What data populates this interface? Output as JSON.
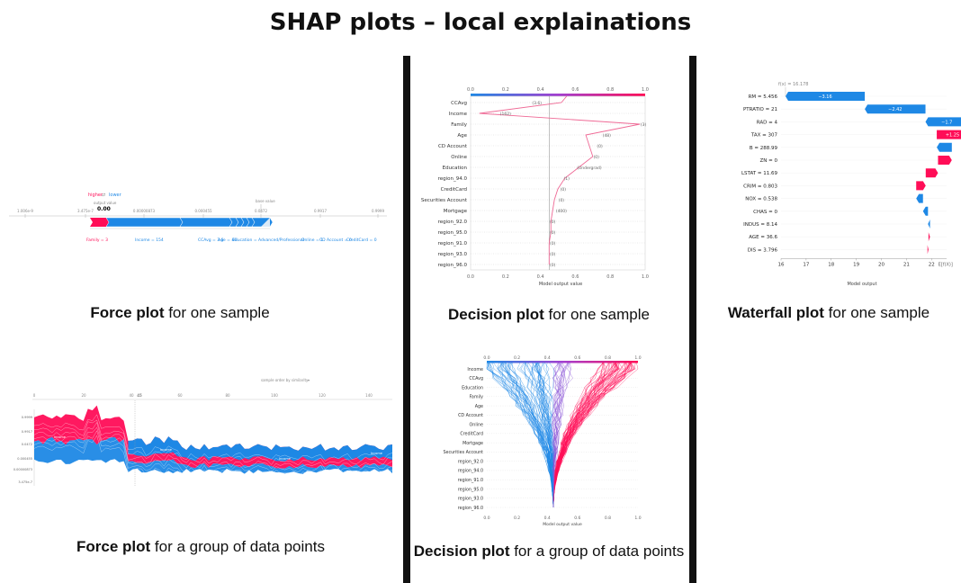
{
  "title": "SHAP plots – local explainations",
  "captions": {
    "force_one": {
      "bold": "Force plot",
      "rest": " for one sample"
    },
    "force_group": {
      "bold": "Force plot",
      "rest": " for a group of data points"
    },
    "decision_one": {
      "bold": "Decision plot",
      "rest": " for one sample"
    },
    "decision_group": {
      "bold": "Decision plot",
      "rest": " for a group of data points"
    },
    "waterfall_one": {
      "bold": "Waterfall plot",
      "rest": " for one sample"
    }
  },
  "force_one": {
    "legend_higher": "higher",
    "legend_lower": "lower",
    "output_label": "output value",
    "output_value": "0.00",
    "base_label": "base value",
    "axis_ticks": [
      "1.006e-9",
      "3.475e-7",
      "0.00000873",
      "0.000455",
      "0.0472",
      "0.9917",
      "0.9999"
    ],
    "red_features": [
      "Family = 3"
    ],
    "blue_features": [
      "Income = 154",
      "CCAvg = 3.6",
      "Age = 46",
      "Education = Advanced/Professional",
      "Online = 1",
      "CD Account = 0",
      "CreditCard = 0"
    ]
  },
  "force_group": {
    "top_ticks": [
      "0",
      "20",
      "40",
      "45",
      "60",
      "80",
      "100",
      "120",
      "140"
    ],
    "y_ticks": [
      "0.9999",
      "0.9917",
      "0.0472",
      "0.000455",
      "0.00000873",
      "3.475e-7"
    ],
    "dropdown": "sample order by similarity",
    "area_labels": [
      "Income",
      "Income",
      "Income",
      "Income"
    ],
    "colors": {
      "red": "#ff0d57",
      "blue": "#1e88e5"
    }
  },
  "decision_one": {
    "top_ticks": [
      "0.0",
      "0.2",
      "0.4",
      "0.6",
      "0.8",
      "1.0"
    ],
    "bottom_ticks": [
      "0.0",
      "0.2",
      "0.4",
      "0.6",
      "0.8",
      "1.0"
    ],
    "xlabel": "Model output value",
    "features": [
      "CCAvg",
      "Income",
      "Family",
      "Age",
      "CD Account",
      "Online",
      "Education",
      "region_94.0",
      "CreditCard",
      "Securities Account",
      "Mortgage",
      "region_92.0",
      "region_95.0",
      "region_91.0",
      "region_93.0",
      "region_96.0"
    ],
    "values": [
      "(3.6)",
      "(162)",
      "(3)",
      "(48)",
      "(0)",
      "(0)",
      "(Undergrad)",
      "(1)",
      "(0)",
      "(0)",
      "(400)",
      "(0)",
      "(0)",
      "(0)",
      "(0)",
      "(0)"
    ]
  },
  "decision_group": {
    "top_ticks": [
      "0.0",
      "0.2",
      "0.4",
      "0.6",
      "0.8",
      "1.0"
    ],
    "bottom_ticks": [
      "0.0",
      "0.2",
      "0.4",
      "0.6",
      "0.8",
      "1.0"
    ],
    "xlabel": "Model output value",
    "features": [
      "Income",
      "CCAvg",
      "Education",
      "Family",
      "Age",
      "CD Account",
      "Online",
      "CreditCard",
      "Mortgage",
      "Securities Account",
      "region_92.0",
      "region_94.0",
      "region_91.0",
      "region_95.0",
      "region_93.0",
      "region_96.0"
    ]
  },
  "waterfall_one": {
    "fx_label": "f(x) = 16.178",
    "xlabel": "Model output",
    "x_ticks": [
      "16",
      "17",
      "18",
      "19",
      "20",
      "21",
      "22"
    ],
    "efx_label": "E[f(X)]",
    "features": [
      "RM = 5.456",
      "PTRATIO = 21",
      "RAD = 4",
      "TAX = 307",
      "B = 288.99",
      "ZN = 0",
      "LSTAT = 11.69",
      "CRIM = 0.803",
      "NOX = 0.538",
      "CHAS = 0",
      "INDUS = 8.14",
      "AGE = 36.6",
      "DIS = 3.796"
    ],
    "bar_labels": [
      "−3.16",
      "−2.42",
      "−1.7",
      "+1.25",
      "",
      "",
      "",
      "",
      "",
      "",
      "",
      "",
      ""
    ],
    "colors": {
      "red": "#ff0d57",
      "blue": "#1e88e5"
    }
  }
}
